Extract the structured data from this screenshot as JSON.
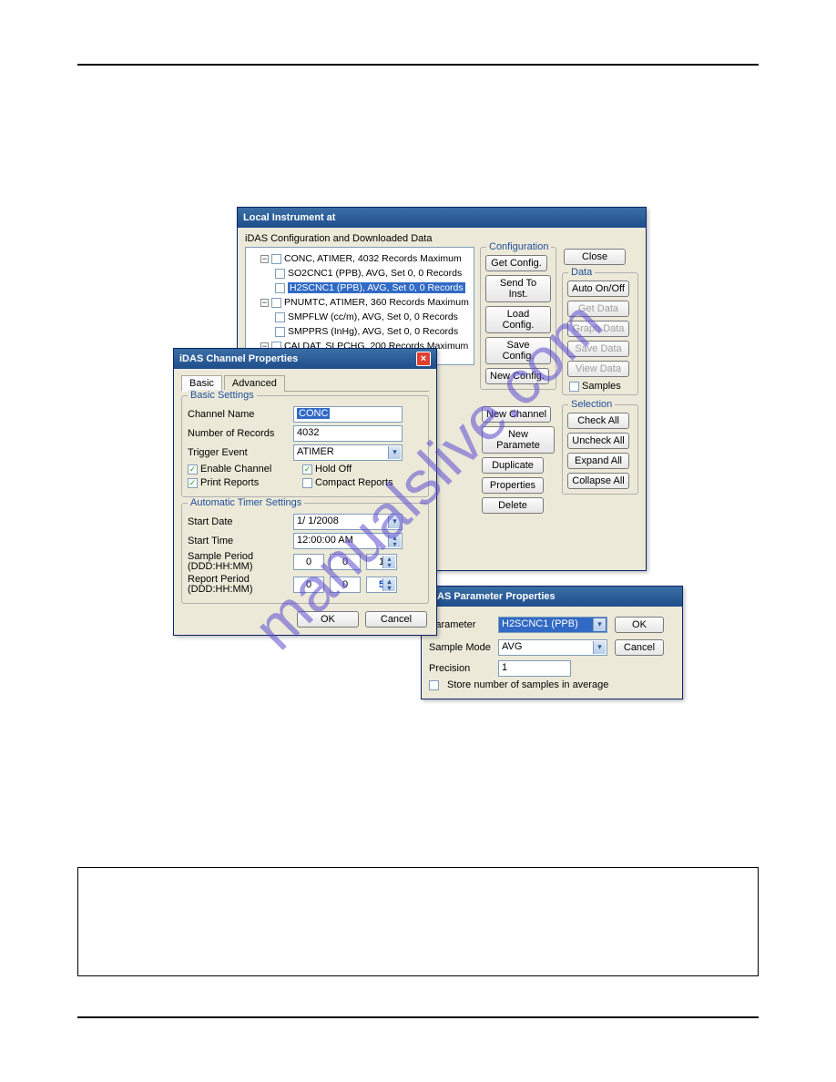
{
  "watermark": "manualslive.com",
  "localWin": {
    "title": "Local Instrument at",
    "treeHeader": "iDAS Configuration and Downloaded Data",
    "tree": [
      {
        "level": 1,
        "exp": "−",
        "cb": false,
        "text": "CONC, ATIMER, 4032 Records Maximum"
      },
      {
        "level": 2,
        "cb": false,
        "text": "SO2CNC1 (PPB), AVG, Set 0, 0 Records"
      },
      {
        "level": 2,
        "cb": false,
        "text": "H2SCNC1 (PPB), AVG, Set 0, 0 Records",
        "highlight": true
      },
      {
        "level": 1,
        "exp": "−",
        "cb": false,
        "text": "PNUMTC, ATIMER, 360 Records Maximum"
      },
      {
        "level": 2,
        "cb": false,
        "text": "SMPFLW (cc/m), AVG, Set 0, 0 Records"
      },
      {
        "level": 2,
        "cb": false,
        "text": "SMPPRS (InHg), AVG, Set 0, 0 Records"
      },
      {
        "level": 1,
        "exp": "−",
        "cb": false,
        "text": "CALDAT, SLPCHG, 200 Records Maximum"
      }
    ],
    "cfg": {
      "title": "Configuration",
      "getConfig": "Get Config.",
      "sendTo": "Send To Inst.",
      "loadConfig": "Load Config.",
      "saveConfig": "Save Config.",
      "newConfig": "New Config.",
      "newChannel": "New Channel",
      "newParam": "New Paramete",
      "duplicate": "Duplicate",
      "properties": "Properties",
      "delete": "Delete"
    },
    "right": {
      "close": "Close",
      "dataTitle": "Data",
      "autoOnOff": "Auto On/Off",
      "getData": "Get Data",
      "graphData": "Graph Data",
      "saveData": "Save Data",
      "viewData": "View Data",
      "samples": "Samples",
      "selTitle": "Selection",
      "checkAll": "Check All",
      "uncheckAll": "Uncheck All",
      "expandAll": "Expand All",
      "collapseAll": "Collapse All"
    }
  },
  "chanWin": {
    "title": "iDAS Channel Properties",
    "tabs": {
      "basic": "Basic",
      "advanced": "Advanced"
    },
    "basicGroup": "Basic Settings",
    "channelName": {
      "label": "Channel Name",
      "value": "CONC"
    },
    "numRecords": {
      "label": "Number of Records",
      "value": "4032"
    },
    "trigger": {
      "label": "Trigger Event",
      "value": "ATIMER"
    },
    "enableChannel": "Enable Channel",
    "holdOff": "Hold Off",
    "printReports": "Print Reports",
    "compactReports": "Compact Reports",
    "timerGroup": "Automatic Timer Settings",
    "startDate": {
      "label": "Start Date",
      "value": "1/ 1/2008"
    },
    "startTime": {
      "label": "Start Time",
      "value": "12:00:00 AM"
    },
    "samplePeriod": {
      "label": "Sample Period\n(DDD:HH:MM)",
      "d": "0",
      "h": "0",
      "m": "1"
    },
    "reportPeriod": {
      "label": "Report Period\n(DDD:HH:MM)",
      "d": "0",
      "h": "0",
      "m": "5"
    },
    "ok": "OK",
    "cancel": "Cancel"
  },
  "paramWin": {
    "title": "iDAS Parameter Properties",
    "parameter": {
      "label": "Parameter",
      "value": "H2SCNC1 (PPB)"
    },
    "sampleMode": {
      "label": "Sample Mode",
      "value": "AVG"
    },
    "precision": {
      "label": "Precision",
      "value": "1"
    },
    "store": "Store number of samples in average",
    "ok": "OK",
    "cancel": "Cancel"
  }
}
